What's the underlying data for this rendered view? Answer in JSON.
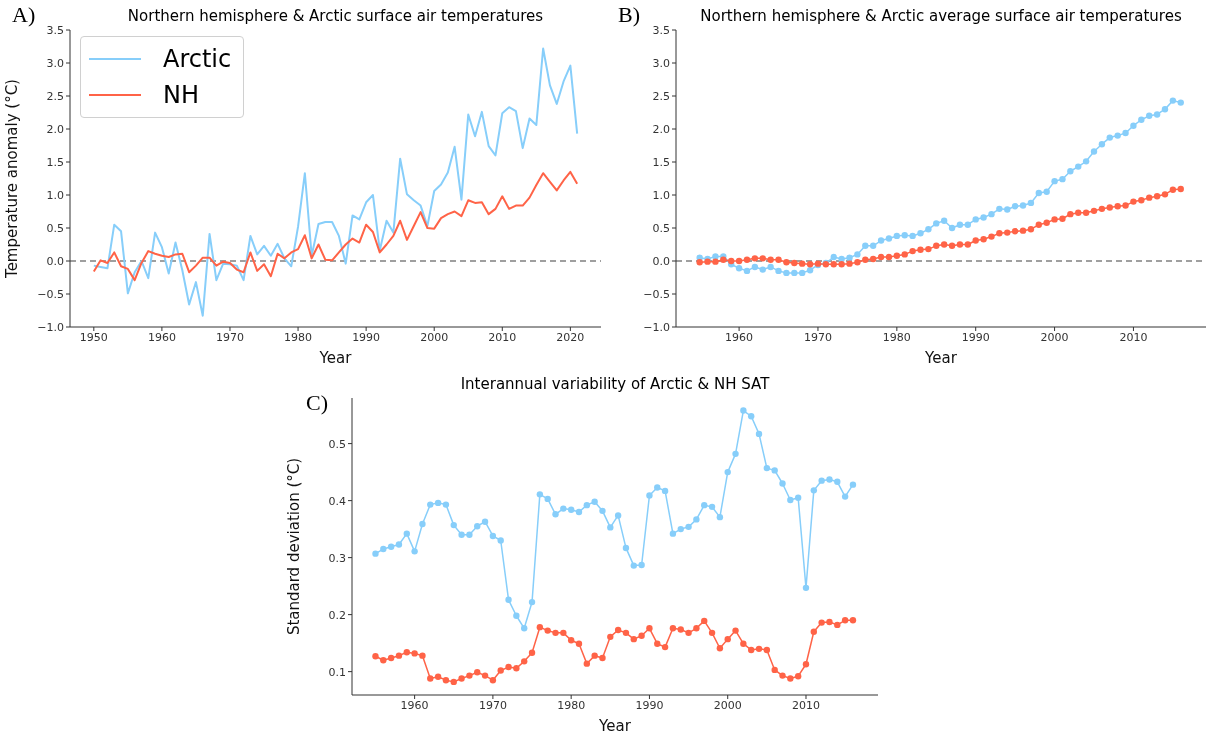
{
  "chart_data": [
    {
      "type": "line",
      "title": "Northern hemisphere & Arctic surface air temperatures",
      "xlabel": "Year",
      "ylabel": "Temperature anomaly (°C)",
      "annotations": [
        "A)"
      ],
      "x": [
        1950,
        1951,
        1952,
        1953,
        1954,
        1955,
        1956,
        1957,
        1958,
        1959,
        1960,
        1961,
        1962,
        1963,
        1964,
        1965,
        1966,
        1967,
        1968,
        1969,
        1970,
        1971,
        1972,
        1973,
        1974,
        1975,
        1976,
        1977,
        1978,
        1979,
        1980,
        1981,
        1982,
        1983,
        1984,
        1985,
        1986,
        1987,
        1988,
        1989,
        1990,
        1991,
        1992,
        1993,
        1994,
        1995,
        1996,
        1997,
        1998,
        1999,
        2000,
        2001,
        2002,
        2003,
        2004,
        2005,
        2006,
        2007,
        2008,
        2009,
        2010,
        2011,
        2012,
        2013,
        2014,
        2015,
        2016,
        2017,
        2018,
        2019,
        2020,
        2021
      ],
      "series": [
        {
          "name": "Arctic",
          "color": "#87cefa",
          "values": [
            -0.07,
            -0.09,
            -0.11,
            0.55,
            0.45,
            -0.49,
            -0.17,
            0.0,
            -0.26,
            0.43,
            0.21,
            -0.19,
            0.28,
            -0.14,
            -0.66,
            -0.32,
            -0.83,
            0.41,
            -0.29,
            -0.04,
            -0.05,
            -0.07,
            -0.29,
            0.38,
            0.1,
            0.23,
            0.08,
            0.26,
            0.04,
            -0.08,
            0.52,
            1.33,
            0.08,
            0.56,
            0.59,
            0.59,
            0.38,
            -0.04,
            0.69,
            0.63,
            0.89,
            1.0,
            0.16,
            0.61,
            0.43,
            1.55,
            1.01,
            0.92,
            0.84,
            0.53,
            1.06,
            1.16,
            1.34,
            1.73,
            0.93,
            2.22,
            1.89,
            2.26,
            1.74,
            1.6,
            2.24,
            2.33,
            2.27,
            1.71,
            2.16,
            2.06,
            3.22,
            2.66,
            2.38,
            2.72,
            2.96,
            1.93
          ]
        },
        {
          "name": "NH",
          "color": "#ff6347",
          "values": [
            -0.16,
            0.01,
            -0.03,
            0.13,
            -0.08,
            -0.12,
            -0.29,
            -0.03,
            0.15,
            0.11,
            0.08,
            0.06,
            0.1,
            0.11,
            -0.17,
            -0.07,
            0.05,
            0.05,
            -0.07,
            -0.01,
            -0.03,
            -0.13,
            -0.17,
            0.13,
            -0.15,
            -0.05,
            -0.23,
            0.11,
            0.04,
            0.13,
            0.18,
            0.39,
            0.04,
            0.25,
            0.02,
            0.01,
            0.13,
            0.25,
            0.34,
            0.28,
            0.55,
            0.44,
            0.13,
            0.25,
            0.38,
            0.61,
            0.32,
            0.53,
            0.74,
            0.5,
            0.49,
            0.65,
            0.71,
            0.75,
            0.68,
            0.92,
            0.88,
            0.89,
            0.71,
            0.79,
            0.98,
            0.79,
            0.84,
            0.84,
            0.96,
            1.15,
            1.33,
            1.2,
            1.07,
            1.22,
            1.35,
            1.17
          ]
        }
      ],
      "xlim": [
        1946.5,
        2024.5
      ],
      "xticks": [
        1950,
        1960,
        1970,
        1980,
        1990,
        2000,
        2010,
        2020
      ],
      "ylim": [
        -1,
        3.5
      ],
      "yticks": [
        {
          "value": -1,
          "label": "−1.0"
        },
        {
          "value": -0.5,
          "label": "−0.5"
        },
        {
          "value": 0,
          "label": "0.0"
        },
        0.5,
        {
          "value": 1,
          "label": "1.0"
        },
        1.5,
        {
          "value": 2,
          "label": "2.0"
        },
        2.5,
        {
          "value": 3,
          "label": "3.0"
        },
        3.5
      ],
      "ref_lines": [
        {
          "axis": "y",
          "value": 0,
          "color": "#808080",
          "line_style": "dashed"
        }
      ],
      "legend": "top left",
      "grid": false,
      "marker": "none",
      "line_style": "solid"
    },
    {
      "type": "line",
      "title": "Northern hemisphere & Arctic average surface air temperatures",
      "xlabel": "Year",
      "annotations": [
        "B)"
      ],
      "x": [
        1955,
        1956,
        1957,
        1958,
        1959,
        1960,
        1961,
        1962,
        1963,
        1964,
        1965,
        1966,
        1967,
        1968,
        1969,
        1970,
        1971,
        1972,
        1973,
        1974,
        1975,
        1976,
        1977,
        1978,
        1979,
        1980,
        1981,
        1982,
        1983,
        1984,
        1985,
        1986,
        1987,
        1988,
        1989,
        1990,
        1991,
        1992,
        1993,
        1994,
        1995,
        1996,
        1997,
        1998,
        1999,
        2000,
        2001,
        2002,
        2003,
        2004,
        2005,
        2006,
        2007,
        2008,
        2009,
        2010,
        2011,
        2012,
        2013,
        2014,
        2015,
        2016
      ],
      "series": [
        {
          "color": "#87cefa",
          "values": [
            0.05,
            0.03,
            0.07,
            0.07,
            -0.05,
            -0.11,
            -0.15,
            -0.09,
            -0.13,
            -0.09,
            -0.15,
            -0.18,
            -0.18,
            -0.18,
            -0.14,
            -0.06,
            -0.03,
            0.06,
            0.03,
            0.05,
            0.1,
            0.23,
            0.23,
            0.31,
            0.34,
            0.38,
            0.39,
            0.38,
            0.42,
            0.48,
            0.57,
            0.61,
            0.5,
            0.55,
            0.55,
            0.63,
            0.66,
            0.71,
            0.79,
            0.78,
            0.83,
            0.84,
            0.88,
            1.03,
            1.05,
            1.21,
            1.24,
            1.36,
            1.43,
            1.51,
            1.66,
            1.77,
            1.87,
            1.9,
            1.94,
            2.05,
            2.14,
            2.2,
            2.22,
            2.3,
            2.43,
            2.4
          ]
        },
        {
          "color": "#ff6347",
          "values": [
            -0.02,
            -0.01,
            -0.01,
            0.02,
            0.0,
            0.0,
            0.02,
            0.04,
            0.04,
            0.02,
            0.02,
            -0.02,
            -0.03,
            -0.04,
            -0.05,
            -0.04,
            -0.05,
            -0.05,
            -0.05,
            -0.04,
            -0.02,
            0.02,
            0.03,
            0.06,
            0.06,
            0.08,
            0.1,
            0.15,
            0.17,
            0.18,
            0.23,
            0.25,
            0.23,
            0.25,
            0.25,
            0.31,
            0.33,
            0.37,
            0.42,
            0.43,
            0.45,
            0.46,
            0.48,
            0.55,
            0.58,
            0.63,
            0.64,
            0.71,
            0.73,
            0.73,
            0.76,
            0.79,
            0.81,
            0.83,
            0.84,
            0.9,
            0.92,
            0.96,
            0.98,
            1.01,
            1.08,
            1.09
          ]
        }
      ],
      "xlim": [
        1952,
        2019.2
      ],
      "xticks": [
        1960,
        1970,
        1980,
        1990,
        2000,
        2010
      ],
      "ylim": [
        -1,
        3.5
      ],
      "yticks": [
        {
          "value": -1,
          "label": "−1.0"
        },
        {
          "value": -0.5,
          "label": "−0.5"
        },
        {
          "value": 0,
          "label": "0.0"
        },
        0.5,
        {
          "value": 1,
          "label": "1.0"
        },
        1.5,
        {
          "value": 2,
          "label": "2.0"
        },
        2.5,
        {
          "value": 3,
          "label": "3.0"
        },
        3.5
      ],
      "ref_lines": [
        {
          "axis": "y",
          "value": 0,
          "color": "#808080",
          "line_style": "dashed"
        }
      ],
      "grid": false,
      "marker": "circle",
      "line_style": "solid"
    },
    {
      "type": "line",
      "title": "Interannual variability of Arctic & NH SAT",
      "xlabel": "Year",
      "ylabel": "Standard deviation (°C)",
      "annotations": [
        "C)"
      ],
      "x": [
        1955,
        1956,
        1957,
        1958,
        1959,
        1960,
        1961,
        1962,
        1963,
        1964,
        1965,
        1966,
        1967,
        1968,
        1969,
        1970,
        1971,
        1972,
        1973,
        1974,
        1975,
        1976,
        1977,
        1978,
        1979,
        1980,
        1981,
        1982,
        1983,
        1984,
        1985,
        1986,
        1987,
        1988,
        1989,
        1990,
        1991,
        1992,
        1993,
        1994,
        1995,
        1996,
        1997,
        1998,
        1999,
        2000,
        2001,
        2002,
        2003,
        2004,
        2005,
        2006,
        2007,
        2008,
        2009,
        2010,
        2011,
        2012,
        2013,
        2014,
        2015,
        2016
      ],
      "series": [
        {
          "color": "#87cefa",
          "values": [
            0.307,
            0.315,
            0.319,
            0.323,
            0.342,
            0.311,
            0.359,
            0.393,
            0.396,
            0.393,
            0.357,
            0.34,
            0.34,
            0.355,
            0.363,
            0.338,
            0.33,
            0.226,
            0.198,
            0.176,
            0.222,
            0.411,
            0.403,
            0.376,
            0.386,
            0.384,
            0.38,
            0.392,
            0.398,
            0.382,
            0.353,
            0.374,
            0.317,
            0.286,
            0.287,
            0.409,
            0.423,
            0.417,
            0.342,
            0.35,
            0.354,
            0.367,
            0.392,
            0.389,
            0.371,
            0.45,
            0.482,
            0.558,
            0.548,
            0.517,
            0.457,
            0.453,
            0.43,
            0.401,
            0.405,
            0.247,
            0.418,
            0.435,
            0.437,
            0.433,
            0.407,
            0.428
          ]
        },
        {
          "color": "#ff6347",
          "values": [
            0.127,
            0.12,
            0.124,
            0.128,
            0.134,
            0.132,
            0.128,
            0.088,
            0.091,
            0.085,
            0.082,
            0.088,
            0.093,
            0.099,
            0.093,
            0.085,
            0.102,
            0.108,
            0.106,
            0.118,
            0.133,
            0.178,
            0.172,
            0.168,
            0.168,
            0.155,
            0.149,
            0.114,
            0.128,
            0.124,
            0.161,
            0.173,
            0.168,
            0.157,
            0.163,
            0.176,
            0.149,
            0.143,
            0.176,
            0.174,
            0.168,
            0.176,
            0.189,
            0.168,
            0.141,
            0.157,
            0.172,
            0.149,
            0.138,
            0.14,
            0.138,
            0.103,
            0.093,
            0.088,
            0.092,
            0.113,
            0.17,
            0.186,
            0.187,
            0.182,
            0.19,
            0.19
          ]
        }
      ],
      "xlim": [
        1952,
        2019.2
      ],
      "xticks": [
        1960,
        1970,
        1980,
        1990,
        2000,
        2010
      ],
      "ylim": [
        0.059,
        0.58
      ],
      "yticks": [
        0.1,
        0.2,
        0.3,
        0.4,
        0.5
      ],
      "grid": false,
      "marker": "circle",
      "line_style": "solid"
    }
  ]
}
